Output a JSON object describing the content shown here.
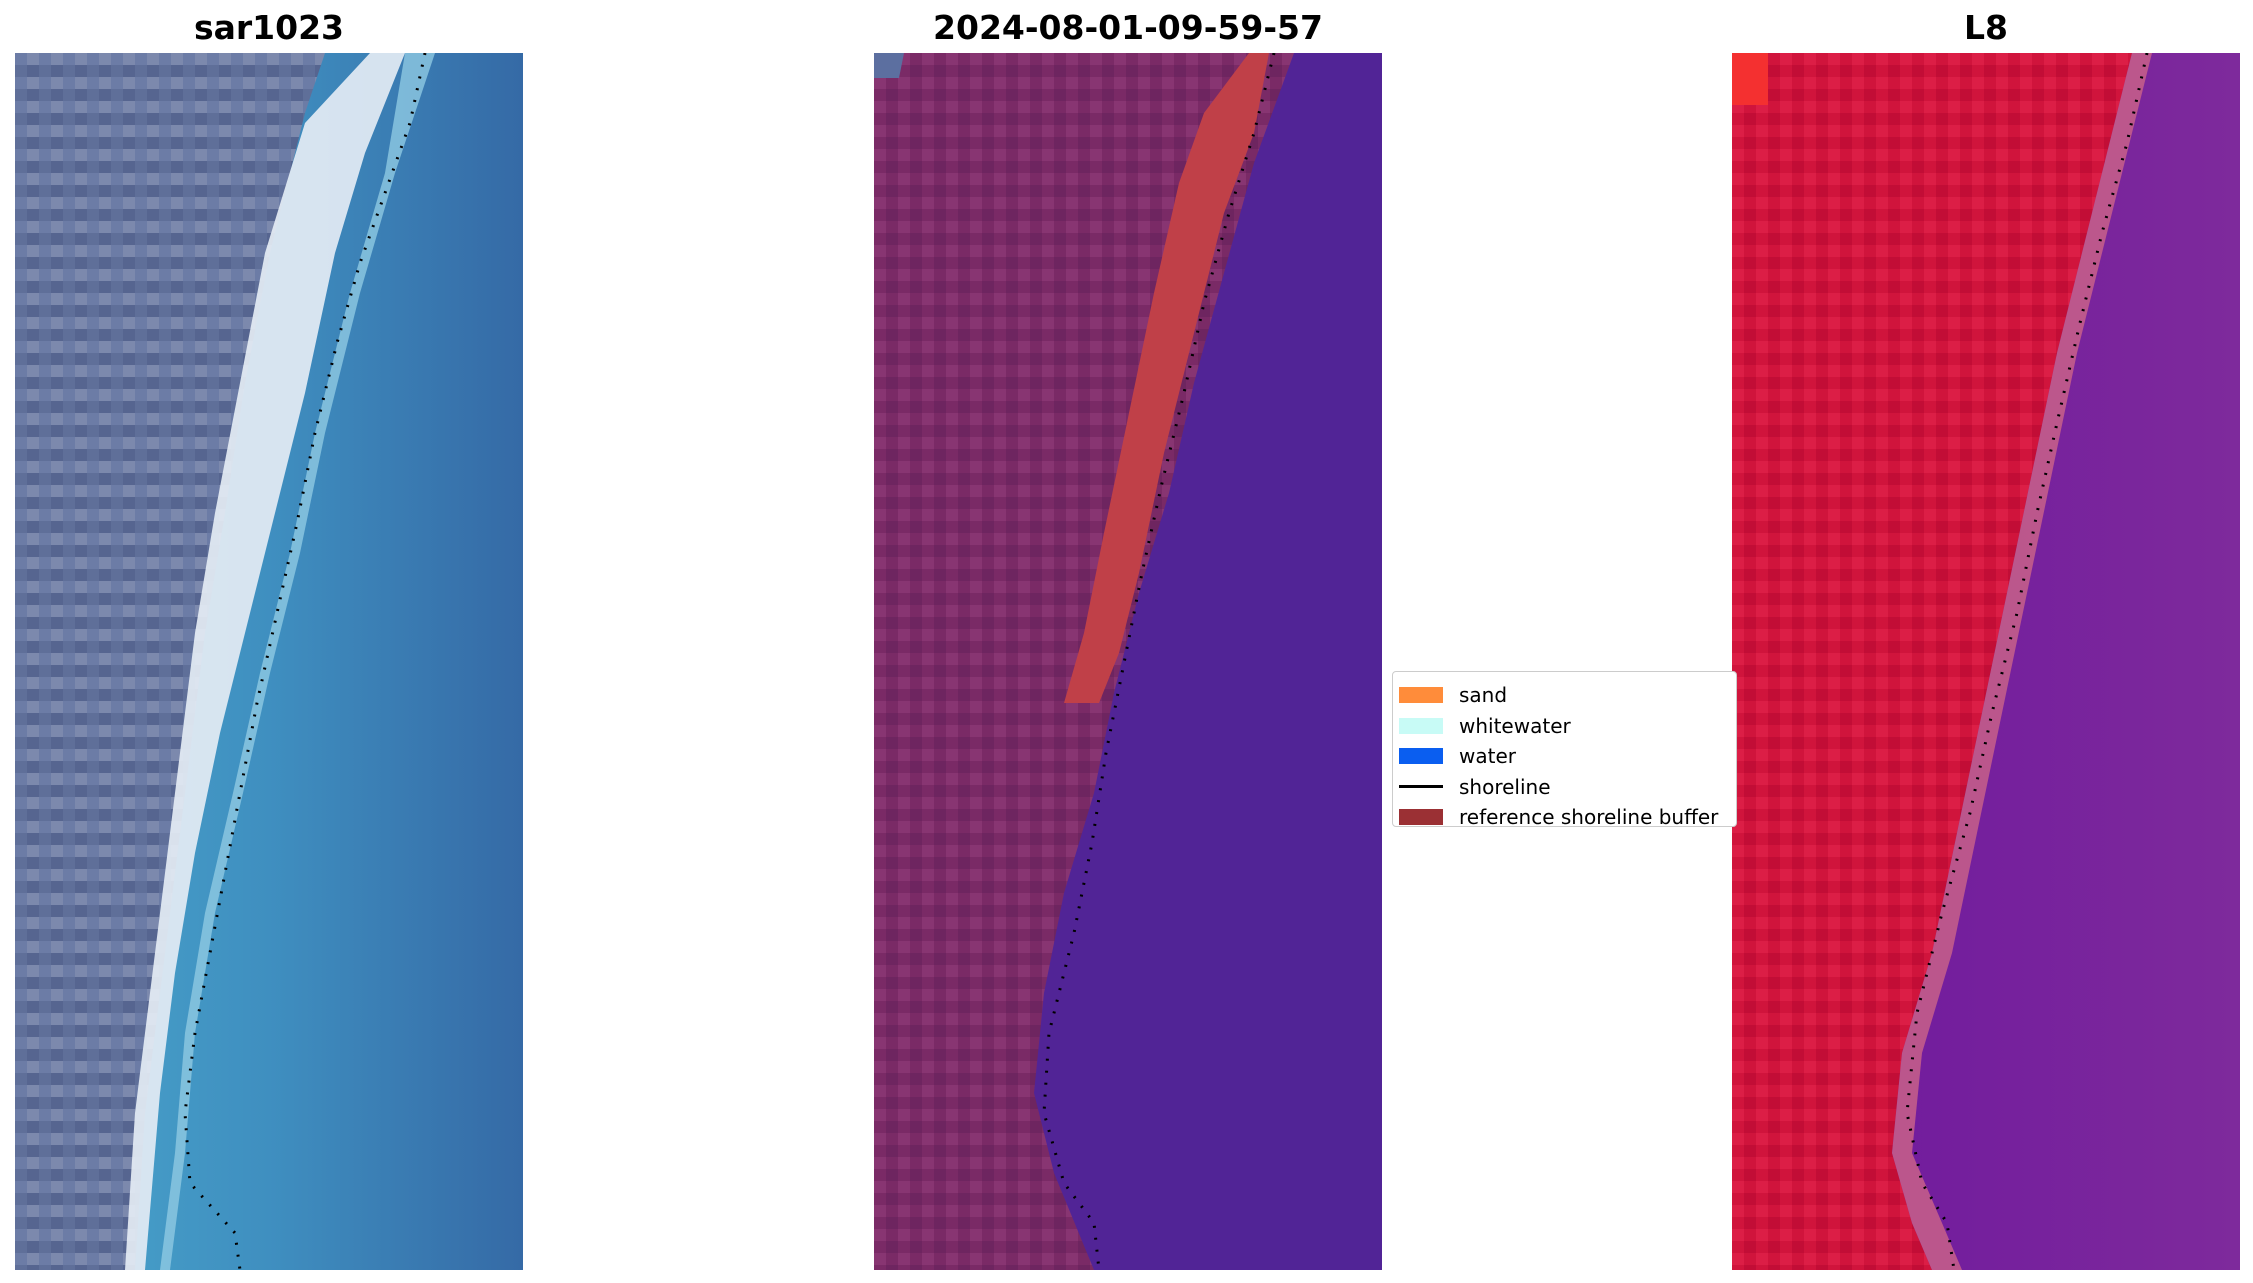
{
  "panels": [
    {
      "title": "sar1023",
      "image": "true-color RGB satellite image of coastline with land on left, beach and water on right, dotted shoreline"
    },
    {
      "title": "2024-08-01-09-59-57",
      "image": "classified false-color image, purple land, red sand strip, dark purple water, dotted shoreline"
    },
    {
      "title": "L8",
      "image": "false-color image, red land, purple water, dotted shoreline"
    }
  ],
  "legend": {
    "items": [
      {
        "label": "sand",
        "color": "#ff8c3a",
        "kind": "patch"
      },
      {
        "label": "whitewater",
        "color": "#c8fbf6",
        "kind": "patch"
      },
      {
        "label": "water",
        "color": "#0a5ef0",
        "kind": "patch"
      },
      {
        "label": "shoreline",
        "color": "#000000",
        "kind": "line"
      },
      {
        "label": "reference shoreline buffer",
        "color": "#9b3034",
        "kind": "patch"
      }
    ]
  }
}
